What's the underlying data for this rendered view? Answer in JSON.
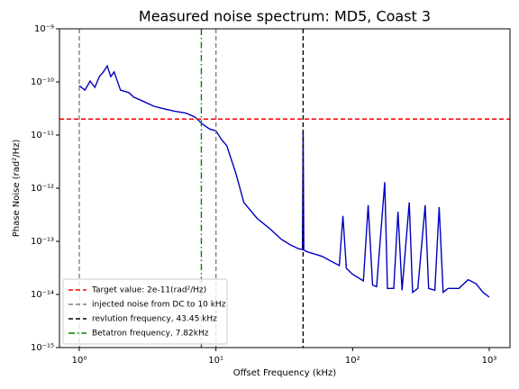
{
  "chart_data": {
    "type": "line",
    "title": "Measured noise spectrum: MD5, Coast 3",
    "xlabel": "Offset Frequency (kHz)",
    "ylabel": "Phase Noise (rad²/Hz)",
    "xscale": "log",
    "yscale": "log",
    "xlim": [
      0.716,
      1419
    ],
    "ylim": [
      1e-15,
      1e-09
    ],
    "xticks": [
      {
        "value": 1,
        "label": "10⁰"
      },
      {
        "value": 10,
        "label": "10¹"
      },
      {
        "value": 100,
        "label": "10²"
      },
      {
        "value": 1000,
        "label": "10³"
      }
    ],
    "yticks": [
      {
        "value": 1e-15,
        "label": "10⁻¹⁵"
      },
      {
        "value": 1e-14,
        "label": "10⁻¹⁴"
      },
      {
        "value": 1e-13,
        "label": "10⁻¹³"
      },
      {
        "value": 1e-12,
        "label": "10⁻¹²"
      },
      {
        "value": 1e-11,
        "label": "10⁻¹¹"
      },
      {
        "value": 1e-10,
        "label": "10⁻¹⁰"
      },
      {
        "value": 1e-09,
        "label": "10⁻⁹"
      }
    ],
    "grid": false,
    "legend_position": "lower left",
    "series": [
      {
        "color": "#0000c0",
        "x": [
          1,
          1.1,
          1.2,
          1.3,
          1.4,
          1.5,
          1.6,
          1.7,
          1.8,
          2.0,
          2.3,
          2.5,
          3,
          3.5,
          4,
          5,
          6,
          7,
          8,
          9,
          10,
          11,
          12,
          14,
          16,
          20,
          25,
          30,
          35,
          40,
          43,
          43.45,
          44,
          47,
          55,
          60,
          70,
          80,
          85,
          90,
          100,
          120,
          130,
          140,
          150,
          172,
          180,
          200,
          215,
          230,
          260,
          275,
          300,
          340,
          360,
          400,
          430,
          460,
          500,
          600,
          700,
          800,
          900,
          1000
        ],
        "values": [
          8.5e-11,
          7e-11,
          1.04e-10,
          7.9e-11,
          1.26e-10,
          1.54e-10,
          2e-10,
          1.26e-10,
          1.54e-10,
          7e-11,
          6.3e-11,
          5.2e-11,
          4.2e-11,
          3.5e-11,
          3.2e-11,
          2.8e-11,
          2.6e-11,
          2.2e-11,
          1.6e-11,
          1.3e-11,
          1.2e-11,
          8.2e-12,
          6.3e-12,
          1.9e-12,
          5.4e-13,
          2.7e-13,
          1.7e-13,
          1.1e-13,
          8.6e-14,
          7.3e-14,
          7e-14,
          1.2e-11,
          6.8e-14,
          6.3e-14,
          5.6e-14,
          5.2e-14,
          4.2e-14,
          3.5e-14,
          3e-13,
          3.1e-14,
          2.4e-14,
          1.8e-14,
          4.8e-13,
          1.5e-14,
          1.4e-14,
          1.3e-12,
          1.3e-14,
          1.3e-14,
          3.6e-13,
          1.2e-14,
          5.4e-13,
          1.1e-14,
          1.3e-14,
          4.8e-13,
          1.3e-14,
          1.2e-14,
          4.4e-13,
          1.1e-14,
          1.3e-14,
          1.3e-14,
          1.9e-14,
          1.6e-14,
          1.1e-14,
          8.9e-15
        ]
      }
    ],
    "reference_lines": [
      {
        "name": "Target value: 2e-11(rad²/Hz)",
        "orientation": "horizontal",
        "values": [
          2e-11
        ],
        "color": "#ff0000",
        "style": "dashed"
      },
      {
        "name": "injected noise from DC to 10 kHz",
        "orientation": "vertical",
        "values": [
          1,
          10
        ],
        "color": "#808080",
        "style": "dashed"
      },
      {
        "name": "revlution frequency, 43.45 kHz",
        "orientation": "vertical",
        "values": [
          43.45
        ],
        "color": "#000000",
        "style": "dashed"
      },
      {
        "name": "Betatron frequency, 7.82kHz",
        "orientation": "vertical",
        "values": [
          7.82
        ],
        "color": "#008000",
        "style": "dashdot"
      }
    ]
  }
}
